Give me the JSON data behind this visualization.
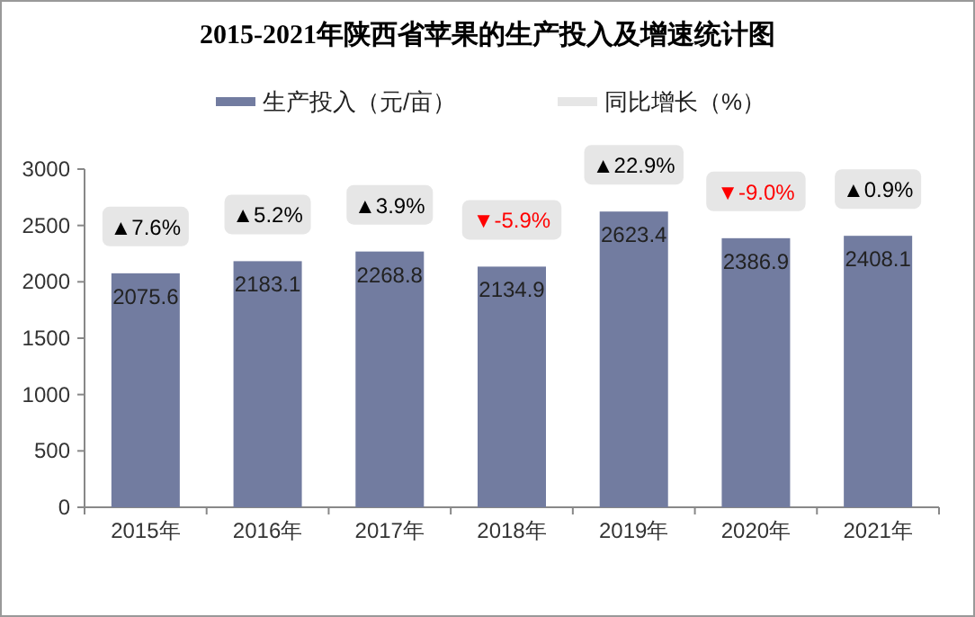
{
  "chart_data": {
    "type": "bar",
    "title": "2015-2021年陕西省苹果的生产投入及增速统计图",
    "categories": [
      "2015年",
      "2016年",
      "2017年",
      "2018年",
      "2019年",
      "2020年",
      "2021年"
    ],
    "series": [
      {
        "name": "生产投入（元/亩）",
        "color": "#727ca0",
        "values": [
          2075.6,
          2183.1,
          2268.8,
          2134.9,
          2623.4,
          2386.9,
          2408.1
        ]
      },
      {
        "name": "同比增长（%）",
        "type": "other",
        "color": "#e6e6e6",
        "values": [
          null,
          null,
          null,
          null,
          null,
          null,
          null
        ],
        "colors": [
          "#000000",
          "#000000",
          "#000000",
          "#ff0000",
          "#000000",
          "#ff0000",
          "#000000"
        ]
      }
    ],
    "annotations": [
      {
        "text": "▲7.6%",
        "x": "2015年",
        "y": 2075.6
      },
      {
        "text": "▲5.2%",
        "x": "2016年",
        "y": 2183.1
      },
      {
        "text": "▲3.9%",
        "x": "2017年",
        "y": 2268.8
      },
      {
        "text": "▼-5.9%",
        "x": "2018年",
        "y": 2134.9
      },
      {
        "text": "▲22.9%",
        "x": "2019年",
        "y": 2623.4
      },
      {
        "text": "▼-9.0%",
        "x": "2020年",
        "y": 2386.9
      },
      {
        "text": "▲0.9%",
        "x": "2021年",
        "y": 2408.1
      }
    ],
    "ylim": [
      0,
      3000
    ],
    "yticks": [
      0,
      500,
      1000,
      1500,
      2000,
      2500,
      3000
    ],
    "data_labels": true,
    "legend": "top",
    "grid": false
  }
}
